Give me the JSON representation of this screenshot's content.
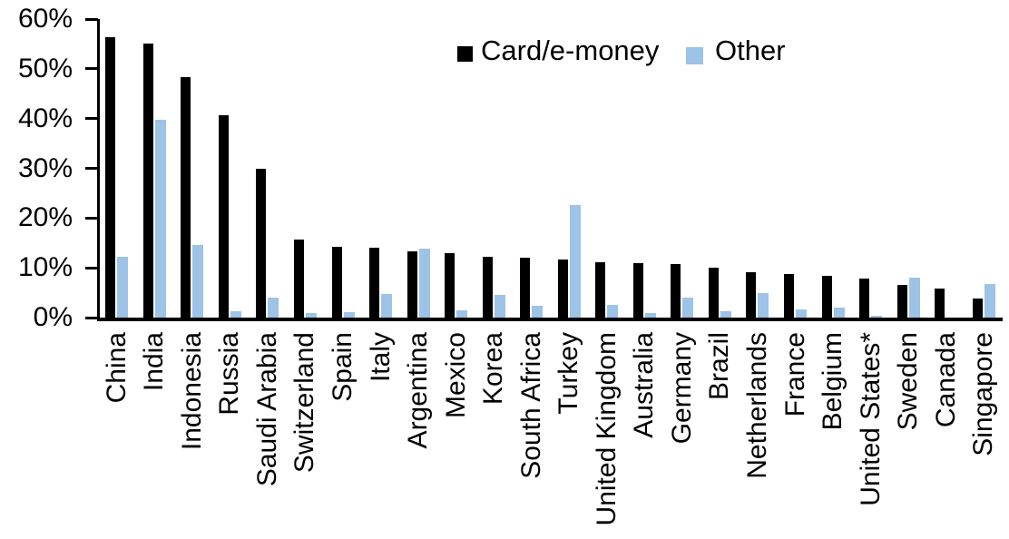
{
  "chart_data": {
    "type": "bar",
    "title": "",
    "xlabel": "",
    "ylabel": "",
    "ylim": [
      0,
      60
    ],
    "ytick_labels": [
      "0%",
      "10%",
      "20%",
      "30%",
      "40%",
      "50%",
      "60%"
    ],
    "ytick_values": [
      0,
      10,
      20,
      30,
      40,
      50,
      60
    ],
    "grid": false,
    "legend_position": "top-center",
    "categories": [
      "China",
      "India",
      "Indonesia",
      "Russia",
      "Saudi Arabia",
      "Switzerland",
      "Spain",
      "Italy",
      "Argentina",
      "Mexico",
      "Korea",
      "South Africa",
      "Turkey",
      "United Kingdom",
      "Australia",
      "Germany",
      "Brazil",
      "Netherlands",
      "France",
      "Belgium",
      "United States*",
      "Sweden",
      "Canada",
      "Singapore"
    ],
    "series": [
      {
        "name": "Card/e-money",
        "color": "#000000",
        "values": [
          56.4,
          55.0,
          48.4,
          40.7,
          30.0,
          15.6,
          14.2,
          14.1,
          13.4,
          13.0,
          12.3,
          12.0,
          11.7,
          11.2,
          10.9,
          10.7,
          10.1,
          9.2,
          8.7,
          8.3,
          7.9,
          6.5,
          5.9,
          3.9
        ]
      },
      {
        "name": "Other",
        "color": "#9DC3E6",
        "values": [
          12.3,
          39.8,
          14.6,
          1.2,
          4.0,
          0.9,
          1.1,
          4.7,
          13.9,
          1.4,
          4.6,
          2.4,
          22.7,
          2.5,
          1.0,
          4.0,
          1.2,
          5.0,
          1.7,
          2.0,
          0.3,
          8.1,
          0.0,
          6.7
        ]
      }
    ]
  }
}
